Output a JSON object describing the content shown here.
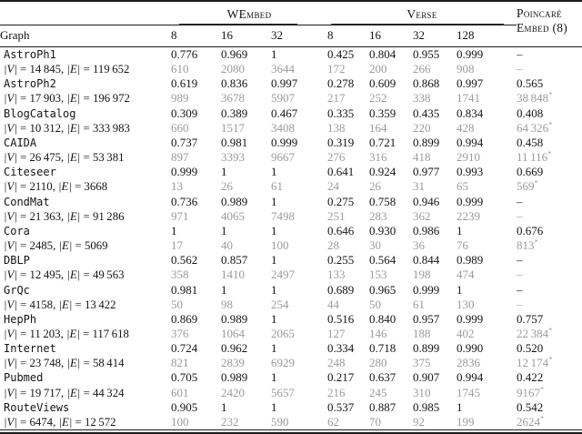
{
  "table": {
    "graph_header": "Graph",
    "groups": {
      "wembed": {
        "label": "WEmbed",
        "dims": [
          "8",
          "16",
          "32"
        ]
      },
      "verse": {
        "label": "Verse",
        "dims": [
          "8",
          "16",
          "32",
          "128"
        ]
      },
      "poincare": {
        "line1": "Poincaré",
        "line2": "Embed (8)"
      }
    },
    "labels": {
      "v": "|V|",
      "e": "|E|",
      "eq": " = ",
      "comma": ", "
    },
    "rows": [
      {
        "name": "AstroPh1",
        "v": "14 845",
        "e": "119 652",
        "scores": [
          "0.776",
          "0.969",
          "1",
          "0.425",
          "0.804",
          "0.955",
          "0.999"
        ],
        "p_score": "–",
        "times": [
          "610",
          "2080",
          "3644",
          "172",
          "200",
          "266",
          "908"
        ],
        "p_time": "–",
        "p_sup": ""
      },
      {
        "name": "AstroPh2",
        "v": "17 903",
        "e": "196 972",
        "scores": [
          "0.619",
          "0.836",
          "0.997",
          "0.278",
          "0.609",
          "0.868",
          "0.997"
        ],
        "p_score": "0.565",
        "times": [
          "989",
          "3678",
          "5907",
          "217",
          "252",
          "338",
          "1741"
        ],
        "p_time": "38 848",
        "p_sup": "*"
      },
      {
        "name": "BlogCatalog",
        "v": "10 312",
        "e": "333 983",
        "scores": [
          "0.309",
          "0.389",
          "0.467",
          "0.335",
          "0.359",
          "0.435",
          "0.834"
        ],
        "p_score": "0.408",
        "times": [
          "660",
          "1517",
          "3408",
          "138",
          "164",
          "220",
          "428"
        ],
        "p_time": "64 326",
        "p_sup": "*"
      },
      {
        "name": "CAIDA",
        "v": "26 475",
        "e": "53 381",
        "scores": [
          "0.737",
          "0.981",
          "0.999",
          "0.319",
          "0.721",
          "0.899",
          "0.994"
        ],
        "p_score": "0.458",
        "times": [
          "897",
          "3393",
          "9667",
          "276",
          "316",
          "418",
          "2910"
        ],
        "p_time": "11 116",
        "p_sup": "*"
      },
      {
        "name": "Citeseer",
        "v": "2110",
        "e": "3668",
        "scores": [
          "0.999",
          "1",
          "1",
          "0.641",
          "0.924",
          "0.977",
          "0.993"
        ],
        "p_score": "0.669",
        "times": [
          "13",
          "26",
          "61",
          "24",
          "26",
          "31",
          "65"
        ],
        "p_time": "569",
        "p_sup": "*"
      },
      {
        "name": "CondMat",
        "v": "21 363",
        "e": "91 286",
        "scores": [
          "0.736",
          "0.989",
          "1",
          "0.275",
          "0.758",
          "0.946",
          "0.999"
        ],
        "p_score": "–",
        "times": [
          "971",
          "4065",
          "7498",
          "251",
          "283",
          "362",
          "2239"
        ],
        "p_time": "–",
        "p_sup": ""
      },
      {
        "name": "Cora",
        "v": "2485",
        "e": "5069",
        "scores": [
          "1",
          "1",
          "1",
          "0.646",
          "0.930",
          "0.986",
          "1"
        ],
        "p_score": "0.676",
        "times": [
          "17",
          "40",
          "100",
          "28",
          "30",
          "36",
          "76"
        ],
        "p_time": "813",
        "p_sup": "*"
      },
      {
        "name": "DBLP",
        "v": "12 495",
        "e": "49 563",
        "scores": [
          "0.562",
          "0.857",
          "1",
          "0.255",
          "0.564",
          "0.844",
          "0.989"
        ],
        "p_score": "–",
        "times": [
          "358",
          "1410",
          "2497",
          "133",
          "153",
          "198",
          "474"
        ],
        "p_time": "–",
        "p_sup": ""
      },
      {
        "name": "GrQc",
        "v": "4158",
        "e": "13 422",
        "scores": [
          "0.981",
          "1",
          "1",
          "0.689",
          "0.965",
          "0.999",
          "1"
        ],
        "p_score": "–",
        "times": [
          "50",
          "98",
          "254",
          "44",
          "50",
          "61",
          "130"
        ],
        "p_time": "–",
        "p_sup": ""
      },
      {
        "name": "HepPh",
        "v": "11 203",
        "e": "117 618",
        "scores": [
          "0.869",
          "0.989",
          "1",
          "0.516",
          "0.840",
          "0.957",
          "0.999"
        ],
        "p_score": "0.757",
        "times": [
          "376",
          "1064",
          "2065",
          "127",
          "146",
          "188",
          "402"
        ],
        "p_time": "22 384",
        "p_sup": "*"
      },
      {
        "name": "Internet",
        "v": "23 748",
        "e": "58 414",
        "scores": [
          "0.724",
          "0.962",
          "1",
          "0.334",
          "0.718",
          "0.899",
          "0.990"
        ],
        "p_score": "0.520",
        "times": [
          "821",
          "2839",
          "6929",
          "248",
          "280",
          "375",
          "2836"
        ],
        "p_time": "12 174",
        "p_sup": "*"
      },
      {
        "name": "Pubmed",
        "v": "19 717",
        "e": "44 324",
        "scores": [
          "0.705",
          "0.989",
          "1",
          "0.217",
          "0.637",
          "0.907",
          "0.994"
        ],
        "p_score": "0.422",
        "times": [
          "601",
          "2420",
          "5657",
          "216",
          "245",
          "310",
          "1745"
        ],
        "p_time": "9167",
        "p_sup": "*"
      },
      {
        "name": "RouteViews",
        "v": "6474",
        "e": "12 572",
        "scores": [
          "0.905",
          "1",
          "1",
          "0.537",
          "0.887",
          "0.985",
          "1"
        ],
        "p_score": "0.542",
        "times": [
          "100",
          "232",
          "590",
          "62",
          "70",
          "92",
          "199"
        ],
        "p_time": "2624",
        "p_sup": "*"
      }
    ]
  }
}
